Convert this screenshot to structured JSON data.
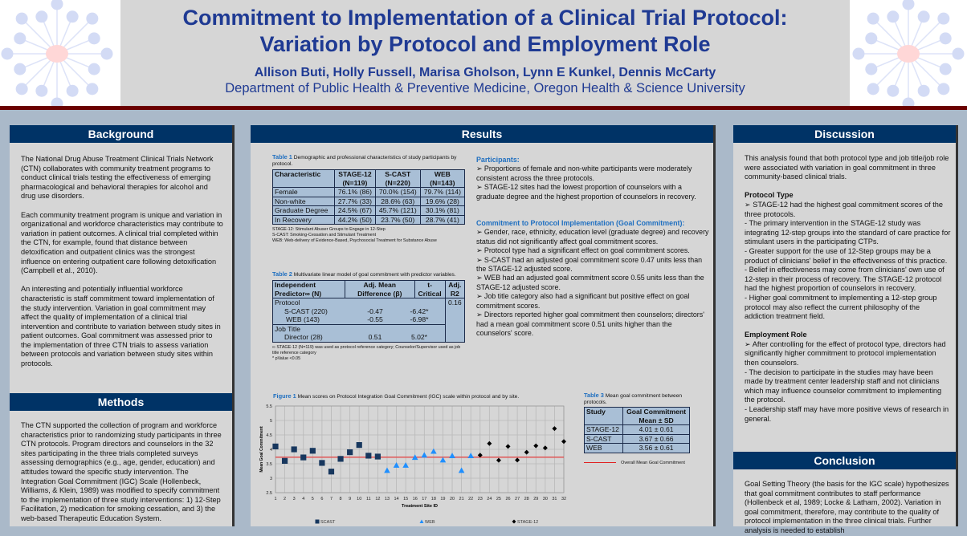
{
  "header": {
    "title_line1": "Commitment to Implementation of a Clinical Trial Protocol:",
    "title_line2": "Variation by Protocol and Employment Role",
    "authors": "Allison Buti, Holly Fussell, Marisa Gholson, Lynn E Kunkel, Dennis McCarty",
    "department": "Department of Public Health & Preventive Medicine, Oregon Health & Science University"
  },
  "background": {
    "heading": "Background",
    "paragraphs": [
      "The National Drug Abuse Treatment Clinical Trials Network (CTN) collaborates with community treatment programs to conduct clinical trials testing the effectiveness of emerging pharmacological and behavioral therapies for alcohol and drug use disorders.",
      "Each community treatment program is unique and variation in organizational and workforce characteristics may contribute to variation in patient outcomes. A clinical trial completed within the CTN, for example, found that distance between detoxification and outpatient clinics was the strongest influence on entering outpatient care following detoxification (Campbell et al., 2010).",
      "An interesting and potentially influential workforce characteristic is staff commitment toward implementation of the study intervention. Variation in goal commitment may affect the quality of implementation of a clinical trial intervention and contribute to variation between study sites in patient outcomes. Goal commitment was assessed prior to the implementation of three CTN trials to assess variation between protocols and variation between study sites within protocols."
    ]
  },
  "methods": {
    "heading": "Methods",
    "text": "The CTN supported the collection of program and workforce characteristics prior to randomizing study participants in three CTN protocols.  Program directors and counselors in the 32 sites participating in the three trials completed surveys assessing demographics (e.g., age, gender, education) and attitudes toward the specific study intervention.  The Integration Goal Commitment (IGC) Scale (Hollenbeck, Williams, & Klein, 1989) was modified to specify commitment to the implementation of three study interventions: 1) 12-Step Facilitation, 2) medication for smoking cessation, and 3) the web-based Therapeutic Education System."
  },
  "results": {
    "heading": "Results",
    "table1": {
      "label": "Table 1",
      "caption": "Demographic and professional characteristics of study participants by protocol.",
      "headers": [
        "Characteristic",
        "STAGE-12\n(N=119)",
        "S-CAST\n(N=220)",
        "WEB\n(N=143)"
      ],
      "rows": [
        [
          "Female",
          "76.1% (86)",
          "70.0% (154)",
          "79.7% (114)"
        ],
        [
          "Non-white",
          "27.7% (33)",
          "28.6% (63)",
          "19.6% (28)"
        ],
        [
          "Graduate Degree",
          "24.5% (67)",
          "45.7% (121)",
          "30.1% (81)"
        ],
        [
          "In Recovery",
          "44.2% (50)",
          "23.7% (50)",
          "28.7% (41)"
        ]
      ],
      "notes": [
        "STAGE-12: Stimulant Abuser Groups to Engage in 12-Step",
        "S-CAST: Smoking-Cessation and Stimulant Treatment",
        "WEB: Web-delivery of Evidence-Based, Psychosocial Treatment for Substance Abuse"
      ]
    },
    "table2": {
      "label": "Table 2",
      "caption": "Multivariate linear model of goal commitment with predictor variables.",
      "headers": [
        "Independent Predictor∞ (N)",
        "Adj. Mean Difference (β)",
        "t-Critical",
        "Adj. R2"
      ],
      "protocol": "Protocol",
      "scast": [
        "S-CAST (220)",
        "-0.47",
        "-6.42*"
      ],
      "web": [
        "WEB (143)",
        "-0.55",
        "-6.98*"
      ],
      "job": "Job Title",
      "director": [
        "Director (28)",
        "0.51",
        "5.02*"
      ],
      "r2": "0.16",
      "notes": [
        "∞ STAGE-12 (N=119) was used as protocol reference category; Counselor/Supervisor used as job title reference category",
        "* pValue <0.05"
      ]
    },
    "table3": {
      "label": "Table 3",
      "caption": "Mean goal commitment between protocols.",
      "headers": [
        "Study",
        "Goal Commitment",
        "Mean ± SD"
      ],
      "rows": [
        [
          "STAGE-12",
          "4.01 ± 0.61"
        ],
        [
          "S-CAST",
          "3.67 ± 0.66"
        ],
        [
          "WEB",
          "3.56 ± 0.61"
        ]
      ],
      "legend": "Overall Mean Goal Commitment"
    },
    "participants": {
      "heading": "Participants:",
      "bullets": [
        "➢ Proportions of female and non-white participants were moderately consistent across the three protocols.",
        "➢ STAGE-12 sites had the lowest proportion of counselors with a graduate degree and the highest proportion of counselors in recovery."
      ]
    },
    "commitment": {
      "heading": "Commitment to Protocol Implementation (Goal Commitment):",
      "bullets": [
        "➢ Gender, race, ethnicity, education level (graduate degree) and recovery status did not significantly affect goal commitment scores.",
        "➢ Protocol type had a significant effect on goal commitment scores.",
        "➢ S-CAST had an adjusted goal commitment score 0.47 units less than the STAGE-12 adjusted score.",
        "➢ WEB had an adjusted goal commitment score 0.55 units less than the STAGE-12 adjusted score.",
        "➢ Job title category also had a significant but positive effect on goal commitment scores.",
        "➢ Directors reported higher goal commitment then counselors; directors' had a mean goal commitment score 0.51 units higher than the counselors' score."
      ]
    }
  },
  "chart_data": {
    "type": "scatter",
    "label": "Figure 1",
    "title": "Mean scores on Protocol Integration Goal Commitment  (IGC) scale within protocol and by site.",
    "xlabel": "Treatment Site ID",
    "ylabel": "Mean Goal Commitment",
    "ylim": [
      2.5,
      5.5
    ],
    "yticks": [
      "2.5",
      "3",
      "3.5",
      "4",
      "4.5",
      "5",
      "5.5"
    ],
    "grid": true,
    "legend": "bottom",
    "reference_line": {
      "value": 3.73,
      "color": "#e05555"
    },
    "series": [
      {
        "name": "SCAST",
        "marker": "square",
        "color": "#17375e",
        "x": [
          1,
          2,
          3,
          4,
          5,
          6,
          7,
          8,
          9,
          10,
          11,
          12
        ],
        "y": [
          4.1,
          3.6,
          4.0,
          3.72,
          3.95,
          3.53,
          3.23,
          3.67,
          3.9,
          4.15,
          3.78,
          3.75
        ]
      },
      {
        "name": "WEB",
        "marker": "triangle",
        "color": "#1f8fff",
        "x": [
          13,
          14,
          15,
          16,
          17,
          18,
          19,
          20,
          21,
          22
        ],
        "y": [
          3.27,
          3.45,
          3.45,
          3.72,
          3.8,
          3.93,
          3.63,
          3.78,
          3.27,
          3.78
        ]
      },
      {
        "name": "STAGE-12",
        "marker": "diamond",
        "color": "#000000",
        "x": [
          23,
          24,
          25,
          26,
          27,
          28,
          29,
          30,
          31,
          32
        ],
        "y": [
          3.8,
          4.2,
          3.62,
          4.1,
          3.63,
          3.9,
          4.12,
          4.05,
          4.72,
          4.27
        ]
      }
    ]
  },
  "discussion": {
    "heading": "Discussion",
    "intro": "This analysis found that both protocol type and job title/job role were associated with variation in goal commitment in three community-based clinical trials.",
    "protocol_heading": "Protocol Type",
    "protocol_lines": [
      "➢ STAGE-12 had the highest goal commitment scores of the three protocols.",
      "- The primary intervention in the STAGE-12 study was integrating 12-step groups into the standard of care practice for stimulant users in the participating CTPs.",
      "- Greater support for the use of 12-Step groups may be a product of clinicians' belief in the effectiveness of this practice.",
      "- Belief in effectiveness may come from clinicians' own use of 12-step in their process of recovery. The STAGE-12 protocol had the highest proportion of counselors in recovery.",
      "- Higher goal commitment to implementing a 12-step group protocol may also reflect the current philosophy of the addiction treatment field."
    ],
    "role_heading": "Employment Role",
    "role_lines": [
      "➢ After controlling for the effect of protocol type, directors had significantly higher commitment to protocol implementation then counselors.",
      "- The decision to participate in the studies may have been made by treatment center leadership staff and not clinicians which may influence counselor commitment to implementing the protocol.",
      "- Leadership staff may have more positive views of research in general."
    ]
  },
  "conclusion": {
    "heading": "Conclusion",
    "text": "Goal Setting Theory (the basis for the IGC scale) hypothesizes that goal commitment contributes to staff performance (Hollenbeck et al, 1989; Locke & Latham, 2002).  Variation in goal commitment, therefore, may contribute to the quality of protocol implementation in the three clinical trials. Further analysis is needed to establish"
  }
}
